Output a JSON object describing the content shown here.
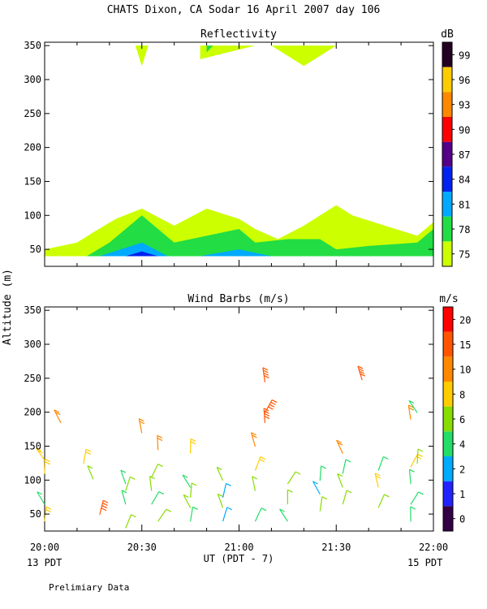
{
  "page_title": "CHATS Dixon, CA  Sodar  16 April 2007  day 106",
  "shared_ylabel": "Altitude (m)",
  "x_axis": {
    "label": "UT  (PDT - 7)",
    "tick_labels": [
      "20:00",
      "20:30",
      "21:00",
      "21:30",
      "22:00"
    ],
    "left_note": "13 PDT",
    "right_note": "15 PDT"
  },
  "footer_note": "Prelimiary Data",
  "chart_data": [
    {
      "type": "area",
      "title": "Reflectivity",
      "x_unit": "UT",
      "xlim": [
        "20:00",
        "22:00"
      ],
      "ylim": [
        25,
        355
      ],
      "y_ticks": [
        50,
        100,
        150,
        200,
        250,
        300,
        350
      ],
      "colorbar": {
        "title": "dB",
        "tick_labels": [
          "99",
          "96",
          "93",
          "90",
          "87",
          "84",
          "81",
          "78",
          "75"
        ],
        "colors": [
          "#220022",
          "#ffcc00",
          "#ff8800",
          "#ff0000",
          "#550088",
          "#0022ee",
          "#00aaff",
          "#22dd44",
          "#ccff00"
        ]
      },
      "bands": [
        {
          "min_db": 75,
          "color": "#ccff00",
          "x": [
            "20:00",
            "20:10",
            "20:15",
            "20:22",
            "20:30",
            "20:40",
            "20:50",
            "21:00",
            "21:05",
            "21:12",
            "21:20",
            "21:30",
            "21:35",
            "21:45",
            "21:55",
            "22:00"
          ],
          "top": [
            50,
            60,
            75,
            95,
            110,
            85,
            110,
            95,
            80,
            65,
            85,
            115,
            100,
            85,
            70,
            90
          ]
        },
        {
          "min_db": 78,
          "color": "#22dd44",
          "x": [
            "20:13",
            "20:20",
            "20:25",
            "20:30",
            "20:40",
            "20:50",
            "21:00",
            "21:05",
            "21:15",
            "21:25",
            "21:30",
            "21:40",
            "21:55",
            "22:00"
          ],
          "top": [
            40,
            60,
            80,
            100,
            60,
            70,
            80,
            60,
            65,
            65,
            50,
            55,
            60,
            80
          ]
        },
        {
          "min_db": 81,
          "color": "#00aaff",
          "x": [
            "20:17",
            "20:30",
            "20:38",
            "20:48",
            "21:00",
            "21:10"
          ],
          "top": [
            40,
            60,
            40,
            40,
            50,
            40
          ]
        },
        {
          "min_db": 84,
          "color": "#0022ee",
          "x": [
            "20:25",
            "20:30",
            "20:35"
          ],
          "top": [
            40,
            47,
            40
          ]
        }
      ],
      "top_patches": [
        {
          "min_db": 75,
          "color": "#ccff00",
          "x": [
            "20:28",
            "20:30",
            "20:32"
          ],
          "y": [
            340,
            320,
            350
          ]
        },
        {
          "min_db": 75,
          "color": "#ccff00",
          "x": [
            "20:48",
            "21:05"
          ],
          "y": [
            330,
            350
          ]
        },
        {
          "min_db": 78,
          "color": "#22dd44",
          "x": [
            "20:50",
            "20:52"
          ],
          "y": [
            340,
            350
          ]
        },
        {
          "min_db": 75,
          "color": "#ccff00",
          "x": [
            "21:10",
            "21:20",
            "21:30"
          ],
          "y": [
            345,
            320,
            350
          ]
        }
      ]
    },
    {
      "type": "scatter",
      "title": "Wind Barbs (m/s)",
      "x_unit": "UT",
      "xlim": [
        "20:00",
        "22:00"
      ],
      "ylim": [
        25,
        355
      ],
      "y_ticks": [
        50,
        100,
        150,
        200,
        250,
        300,
        350
      ],
      "colorbar": {
        "title": "m/s",
        "tick_labels": [
          "20",
          "15",
          "10",
          "8",
          "6",
          "4",
          "2",
          "1",
          "0"
        ],
        "colors": [
          "#ff0000",
          "#ff5500",
          "#ff8800",
          "#ffcc00",
          "#88dd00",
          "#22dd66",
          "#00aaff",
          "#2222ff",
          "#330044"
        ]
      },
      "barbs_note": "one barb per time/altitude sample; values are speed in m/s",
      "barbs": [
        {
          "t": "20:00",
          "z": 140,
          "s": 9
        },
        {
          "t": "20:00",
          "z": 120,
          "s": 9
        },
        {
          "t": "20:00",
          "z": 75,
          "s": 4
        },
        {
          "t": "20:00",
          "z": 50,
          "s": 8
        },
        {
          "t": "20:05",
          "z": 195,
          "s": 10
        },
        {
          "t": "20:12",
          "z": 135,
          "s": 9
        },
        {
          "t": "20:15",
          "z": 112,
          "s": 6
        },
        {
          "t": "20:17",
          "z": 60,
          "s": 18
        },
        {
          "t": "20:25",
          "z": 105,
          "s": 4
        },
        {
          "t": "20:25",
          "z": 95,
          "s": 6
        },
        {
          "t": "20:25",
          "z": 75,
          "s": 4
        },
        {
          "t": "20:25",
          "z": 40,
          "s": 6
        },
        {
          "t": "20:30",
          "z": 180,
          "s": 14
        },
        {
          "t": "20:33",
          "z": 115,
          "s": 6
        },
        {
          "t": "20:33",
          "z": 95,
          "s": 6
        },
        {
          "t": "20:33",
          "z": 75,
          "s": 5
        },
        {
          "t": "20:35",
          "z": 155,
          "s": 10
        },
        {
          "t": "20:35",
          "z": 50,
          "s": 6
        },
        {
          "t": "20:45",
          "z": 150,
          "s": 9
        },
        {
          "t": "20:45",
          "z": 100,
          "s": 4
        },
        {
          "t": "20:45",
          "z": 85,
          "s": 6
        },
        {
          "t": "20:45",
          "z": 70,
          "s": 6
        },
        {
          "t": "20:45",
          "z": 50,
          "s": 5
        },
        {
          "t": "20:55",
          "z": 110,
          "s": 6
        },
        {
          "t": "20:55",
          "z": 85,
          "s": 3
        },
        {
          "t": "20:55",
          "z": 70,
          "s": 6
        },
        {
          "t": "20:55",
          "z": 50,
          "s": 3
        },
        {
          "t": "21:05",
          "z": 160,
          "s": 10
        },
        {
          "t": "21:05",
          "z": 125,
          "s": 8
        },
        {
          "t": "21:05",
          "z": 95,
          "s": 6
        },
        {
          "t": "21:05",
          "z": 50,
          "s": 5
        },
        {
          "t": "21:08",
          "z": 255,
          "s": 18
        },
        {
          "t": "21:08",
          "z": 210,
          "s": 18
        },
        {
          "t": "21:08",
          "z": 195,
          "s": 18
        },
        {
          "t": "21:15",
          "z": 105,
          "s": 6
        },
        {
          "t": "21:15",
          "z": 75,
          "s": 6
        },
        {
          "t": "21:15",
          "z": 50,
          "s": 5
        },
        {
          "t": "21:25",
          "z": 110,
          "s": 5
        },
        {
          "t": "21:25",
          "z": 90,
          "s": 3
        },
        {
          "t": "21:25",
          "z": 65,
          "s": 6
        },
        {
          "t": "21:32",
          "z": 150,
          "s": 10
        },
        {
          "t": "21:32",
          "z": 120,
          "s": 4
        },
        {
          "t": "21:32",
          "z": 100,
          "s": 6
        },
        {
          "t": "21:32",
          "z": 75,
          "s": 6
        },
        {
          "t": "21:38",
          "z": 258,
          "s": 18
        },
        {
          "t": "21:43",
          "z": 125,
          "s": 4
        },
        {
          "t": "21:43",
          "z": 100,
          "s": 8
        },
        {
          "t": "21:43",
          "z": 70,
          "s": 6
        },
        {
          "t": "21:53",
          "z": 200,
          "s": 10
        },
        {
          "t": "21:53",
          "z": 130,
          "s": 8
        },
        {
          "t": "21:53",
          "z": 105,
          "s": 5
        },
        {
          "t": "21:53",
          "z": 75,
          "s": 5
        },
        {
          "t": "21:53",
          "z": 50,
          "s": 4
        },
        {
          "t": "21:55",
          "z": 210,
          "s": 5
        },
        {
          "t": "21:55",
          "z": 135,
          "s": 6
        }
      ]
    }
  ]
}
